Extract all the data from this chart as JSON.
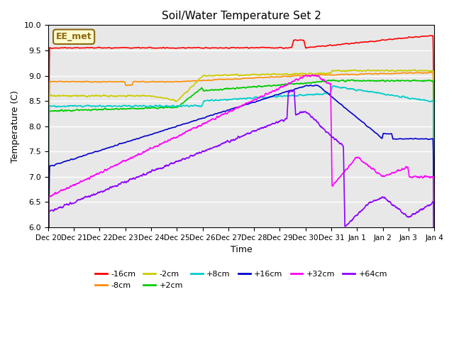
{
  "title": "Soil/Water Temperature Set 2",
  "xlabel": "Time",
  "ylabel": "Temperature (C)",
  "ylim": [
    6.0,
    10.0
  ],
  "yticks": [
    6.0,
    6.5,
    7.0,
    7.5,
    8.0,
    8.5,
    9.0,
    9.5,
    10.0
  ],
  "xtick_labels": [
    "Dec 20",
    "Dec 21",
    "Dec 22",
    "Dec 23",
    "Dec 24",
    "Dec 25",
    "Dec 26",
    "Dec 27",
    "Dec 28",
    "Dec 29",
    "Dec 30",
    "Dec 31",
    "Jan 1",
    "Jan 2",
    "Jan 3",
    "Jan 4"
  ],
  "annotation_text": "EE_met",
  "annotation_color": "#8B6914",
  "background_color": "#E8E8E8",
  "fig_background": "#FFFFFF",
  "series": {
    "-16cm": {
      "color": "#FF0000",
      "lw": 1.2
    },
    "-8cm": {
      "color": "#FF8C00",
      "lw": 1.2
    },
    "-2cm": {
      "color": "#CCCC00",
      "lw": 1.2
    },
    "+2cm": {
      "color": "#00CC00",
      "lw": 1.2
    },
    "+8cm": {
      "color": "#00CCCC",
      "lw": 1.2
    },
    "+16cm": {
      "color": "#0000CC",
      "lw": 1.2
    },
    "+32cm": {
      "color": "#FF00FF",
      "lw": 1.2
    },
    "+64cm": {
      "color": "#8B00FF",
      "lw": 1.2
    }
  },
  "legend_order": [
    "-16cm",
    "-8cm",
    "-2cm",
    "+2cm",
    "+8cm",
    "+16cm",
    "+32cm",
    "+64cm"
  ]
}
